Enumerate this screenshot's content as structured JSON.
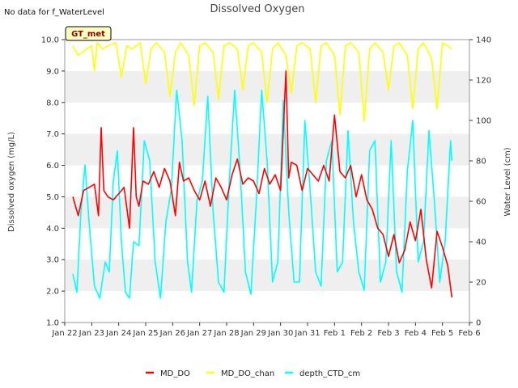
{
  "chart_data": {
    "type": "line",
    "title": "Dissolved Oxygen",
    "note": "No data for f_WaterLevel",
    "badge": "GT_met",
    "xlabel": "",
    "ylabel": "Dissolved oxygen (mg/L)",
    "y2label": "Water Level (cm)",
    "x_ticks": [
      "Jan 22",
      "Jan 23",
      "Jan 24",
      "Jan 25",
      "Jan 26",
      "Jan 27",
      "Jan 28",
      "Jan 29",
      "Jan 30",
      "Jan 31",
      "Feb 1",
      "Feb 2",
      "Feb 3",
      "Feb 4",
      "Feb 5",
      "Feb 6"
    ],
    "xlim": [
      0,
      15
    ],
    "ylim": [
      1.0,
      10.0
    ],
    "y_ticks": [
      "1.0",
      "2.0",
      "3.0",
      "4.0",
      "5.0",
      "6.0",
      "7.0",
      "8.0",
      "9.0",
      "10.0"
    ],
    "y2lim": [
      0,
      140
    ],
    "y2_ticks": [
      "0",
      "20",
      "40",
      "60",
      "80",
      "100",
      "120",
      "140"
    ],
    "grid": "horizontal bands",
    "legend_position": "bottom",
    "colors": {
      "MD_DO": "#ff0000",
      "MD_DO_chan": "#ffff00",
      "depth_CTD_cm": "#00ffff",
      "band": "#efefef",
      "badge_bg": "#ffffc0"
    },
    "series": [
      {
        "name": "MD_DO",
        "axis": "left",
        "x": [
          0.3,
          0.5,
          0.7,
          0.9,
          1.1,
          1.25,
          1.35,
          1.45,
          1.6,
          1.8,
          2.0,
          2.2,
          2.4,
          2.55,
          2.65,
          2.75,
          2.9,
          3.1,
          3.3,
          3.5,
          3.7,
          3.9,
          4.1,
          4.25,
          4.4,
          4.6,
          4.8,
          5.0,
          5.2,
          5.4,
          5.6,
          5.8,
          6.0,
          6.2,
          6.4,
          6.6,
          6.8,
          7.0,
          7.2,
          7.4,
          7.6,
          7.8,
          8.0,
          8.2,
          8.3,
          8.4,
          8.6,
          8.8,
          9.0,
          9.2,
          9.4,
          9.6,
          9.8,
          10.0,
          10.2,
          10.4,
          10.6,
          10.8,
          11.0,
          11.2,
          11.4,
          11.6,
          11.8,
          12.0,
          12.2,
          12.4,
          12.6,
          12.8,
          13.0,
          13.2,
          13.4,
          13.6,
          13.8,
          14.0,
          14.2,
          14.35
        ],
        "values": [
          5.0,
          4.4,
          5.2,
          5.3,
          5.4,
          4.4,
          7.2,
          5.2,
          5.0,
          4.9,
          5.1,
          5.3,
          4.0,
          7.2,
          5.0,
          4.7,
          5.5,
          5.4,
          5.8,
          5.3,
          5.9,
          5.5,
          4.4,
          6.1,
          5.5,
          5.6,
          5.2,
          4.9,
          5.5,
          4.7,
          5.6,
          5.3,
          4.9,
          5.7,
          6.2,
          5.4,
          5.6,
          5.5,
          5.1,
          5.9,
          5.4,
          5.7,
          5.2,
          9.0,
          5.6,
          6.1,
          6.0,
          5.2,
          5.9,
          5.7,
          5.5,
          6.0,
          5.5,
          7.6,
          5.8,
          5.6,
          6.0,
          5.0,
          5.7,
          4.9,
          4.6,
          4.0,
          3.8,
          3.1,
          3.8,
          2.9,
          3.3,
          4.2,
          3.6,
          4.6,
          3.0,
          2.1,
          3.9,
          3.4,
          2.8,
          1.8
        ]
      },
      {
        "name": "MD_DO_chan",
        "axis": "left",
        "x": [
          0.3,
          0.5,
          0.8,
          1.0,
          1.1,
          1.2,
          1.4,
          1.6,
          1.9,
          2.1,
          2.3,
          2.5,
          2.8,
          3.0,
          3.2,
          3.4,
          3.7,
          3.9,
          4.1,
          4.3,
          4.6,
          4.8,
          5.0,
          5.2,
          5.5,
          5.7,
          5.9,
          6.1,
          6.4,
          6.6,
          6.8,
          7.0,
          7.3,
          7.5,
          7.7,
          7.9,
          8.2,
          8.4,
          8.6,
          8.8,
          9.1,
          9.3,
          9.5,
          9.7,
          10.0,
          10.2,
          10.4,
          10.6,
          10.9,
          11.1,
          11.3,
          11.5,
          11.8,
          12.0,
          12.2,
          12.4,
          12.7,
          12.9,
          13.1,
          13.3,
          13.6,
          13.8,
          14.0,
          14.2,
          14.35
        ],
        "values": [
          9.8,
          9.5,
          9.7,
          9.8,
          9.0,
          9.9,
          9.7,
          9.8,
          9.9,
          8.8,
          9.8,
          9.7,
          9.9,
          8.6,
          9.7,
          9.9,
          9.6,
          8.2,
          9.6,
          9.9,
          9.5,
          7.9,
          9.8,
          9.9,
          9.6,
          8.1,
          9.8,
          9.9,
          9.7,
          8.4,
          9.8,
          9.9,
          9.6,
          8.0,
          9.7,
          9.9,
          9.5,
          8.3,
          9.8,
          9.9,
          9.7,
          8.0,
          9.8,
          9.9,
          9.5,
          7.6,
          9.8,
          9.9,
          9.6,
          7.4,
          9.7,
          9.9,
          9.6,
          8.4,
          9.8,
          9.9,
          9.5,
          7.8,
          9.7,
          9.9,
          9.4,
          7.8,
          9.9,
          9.8,
          9.7
        ]
      },
      {
        "name": "depth_CTD_cm",
        "axis": "right",
        "x": [
          0.3,
          0.45,
          0.6,
          0.75,
          0.9,
          1.1,
          1.3,
          1.5,
          1.65,
          1.8,
          1.95,
          2.1,
          2.25,
          2.4,
          2.55,
          2.75,
          2.95,
          3.15,
          3.35,
          3.55,
          3.75,
          3.95,
          4.15,
          4.35,
          4.55,
          4.7,
          4.9,
          5.1,
          5.3,
          5.5,
          5.7,
          5.9,
          6.1,
          6.3,
          6.5,
          6.7,
          6.9,
          7.1,
          7.3,
          7.5,
          7.7,
          7.9,
          8.1,
          8.3,
          8.5,
          8.7,
          8.9,
          9.1,
          9.3,
          9.5,
          9.7,
          9.9,
          10.1,
          10.3,
          10.5,
          10.7,
          10.9,
          11.1,
          11.3,
          11.5,
          11.7,
          11.9,
          12.1,
          12.3,
          12.5,
          12.7,
          12.9,
          13.1,
          13.3,
          13.5,
          13.7,
          13.9,
          14.1,
          14.3,
          14.35
        ],
        "values": [
          24,
          15,
          55,
          78,
          50,
          18,
          12,
          30,
          25,
          70,
          85,
          40,
          15,
          12,
          40,
          38,
          90,
          80,
          30,
          12,
          50,
          66,
          115,
          90,
          30,
          15,
          60,
          70,
          112,
          55,
          20,
          15,
          70,
          115,
          75,
          25,
          14,
          60,
          115,
          80,
          20,
          30,
          110,
          55,
          20,
          20,
          100,
          65,
          25,
          18,
          80,
          90,
          25,
          30,
          95,
          50,
          25,
          16,
          85,
          90,
          20,
          30,
          90,
          25,
          15,
          75,
          100,
          30,
          40,
          95,
          60,
          20,
          40,
          90,
          80
        ]
      }
    ]
  }
}
